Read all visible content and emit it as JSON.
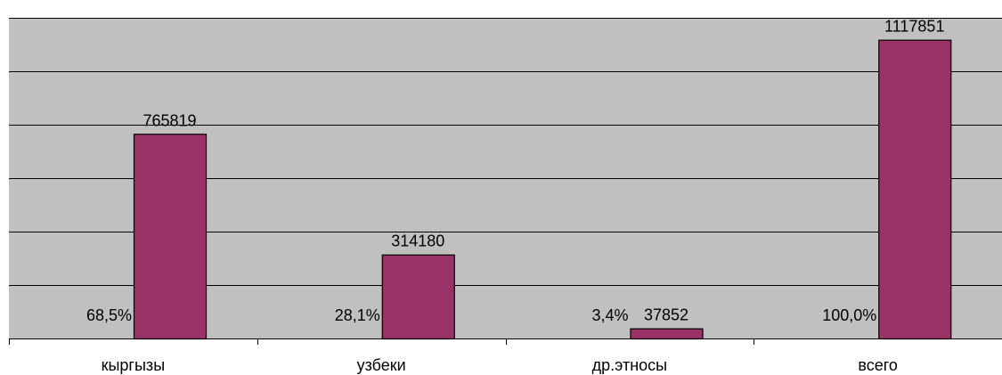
{
  "chart_data": {
    "type": "bar",
    "title": "",
    "xlabel": "",
    "ylabel": "",
    "ylim": [
      0,
      1200000
    ],
    "grid": true,
    "categories": [
      "кыргызы",
      "узбеки",
      "др.этносы",
      "всего"
    ],
    "series": [
      {
        "values": [
          765819,
          314180,
          37852,
          1117851
        ],
        "value_labels": [
          "765819",
          "314180",
          "37852",
          "1117851"
        ],
        "percent_labels": [
          "68,5%",
          "28,1%",
          "3,4%",
          "100,0%"
        ]
      }
    ],
    "colors": {
      "plot_background": "#c0c0c0",
      "bar_fill": "#993366",
      "bar_stroke": "#000000",
      "gridline": "#000000"
    }
  }
}
